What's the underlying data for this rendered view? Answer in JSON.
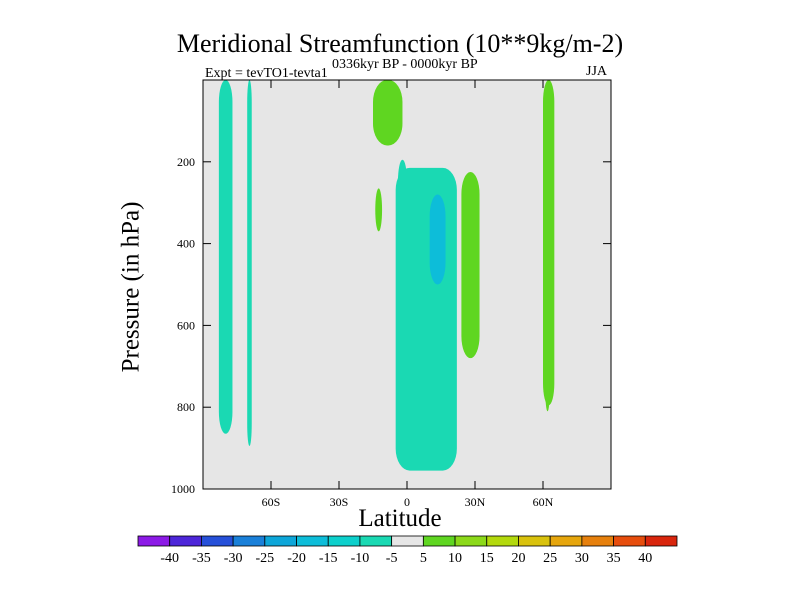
{
  "chart_data": {
    "type": "contour",
    "title": "Meridional Streamfunction (10**9kg/m-2)",
    "subtitle_left": "Expt = tevTO1-tevta1",
    "subtitle_center": "0336kyr BP - 0000kyr BP",
    "subtitle_right": "JJA",
    "xlabel": "Latitude",
    "ylabel": "Pressure (in hPa)",
    "xlim": [
      -90,
      90
    ],
    "ylim": [
      1000,
      0
    ],
    "x_ticks": [
      {
        "value": -60,
        "label": "60S"
      },
      {
        "value": -30,
        "label": "30S"
      },
      {
        "value": 0,
        "label": "0"
      },
      {
        "value": 30,
        "label": "30N"
      },
      {
        "value": 60,
        "label": "60N"
      }
    ],
    "y_ticks": [
      {
        "value": 200,
        "label": "200"
      },
      {
        "value": 400,
        "label": "400"
      },
      {
        "value": 600,
        "label": "600"
      },
      {
        "value": 800,
        "label": "800"
      },
      {
        "value": 1000,
        "label": "1000"
      }
    ],
    "background_fill": "#e6e6e6",
    "contour_regions": [
      {
        "level": "-10 to -5",
        "color": "#1ad9b3",
        "lat_range": [
          -83,
          -77
        ],
        "p_range": [
          0,
          865
        ]
      },
      {
        "level": "-10 to -5",
        "color": "#1ad9b3",
        "lat_range": [
          -70.5,
          -68.5
        ],
        "p_range": [
          0,
          895
        ]
      },
      {
        "level": "5 to 10",
        "color": "#5fd621",
        "lat_range": [
          -15,
          -2
        ],
        "p_range": [
          0,
          160
        ]
      },
      {
        "level": "5 to 10",
        "color": "#5fd621",
        "lat_range": [
          -14,
          -11
        ],
        "p_range": [
          265,
          370
        ]
      },
      {
        "level": "-10 to -5",
        "color": "#1ad9b3",
        "lat_range": [
          -4,
          0
        ],
        "p_range": [
          195,
          425
        ]
      },
      {
        "level": "-10 to -5",
        "color": "#1ad9b3",
        "lat_range": [
          -5,
          22
        ],
        "p_range": [
          215,
          955
        ]
      },
      {
        "level": "-15 to -10",
        "color": "#0dbdd9",
        "lat_range": [
          10,
          17
        ],
        "p_range": [
          280,
          500
        ]
      },
      {
        "level": "5 to 10",
        "color": "#5fd621",
        "lat_range": [
          24,
          32
        ],
        "p_range": [
          225,
          680
        ]
      },
      {
        "level": "5 to 10",
        "color": "#5fd621",
        "lat_range": [
          60,
          65
        ],
        "p_range": [
          0,
          795
        ]
      },
      {
        "level": "5 to 10",
        "color": "#5fd621",
        "lat_range": [
          61,
          63
        ],
        "p_range": [
          685,
          810
        ]
      }
    ],
    "colorbar": {
      "labels": [
        "-40",
        "-35",
        "-30",
        "-25",
        "-20",
        "-15",
        "-10",
        "-5",
        "5",
        "10",
        "15",
        "20",
        "25",
        "30",
        "35",
        "40"
      ],
      "colors": [
        "#8c1ae6",
        "#4d26d9",
        "#2650d9",
        "#1a80d9",
        "#0da6d9",
        "#0dbdd9",
        "#0dd0cc",
        "#1ad9b3",
        "#e6e6e6",
        "#5fd621",
        "#8cd91a",
        "#b3d90d",
        "#d9c20d",
        "#e6a60d",
        "#e6800d",
        "#e64d0d",
        "#d9260d"
      ]
    }
  }
}
